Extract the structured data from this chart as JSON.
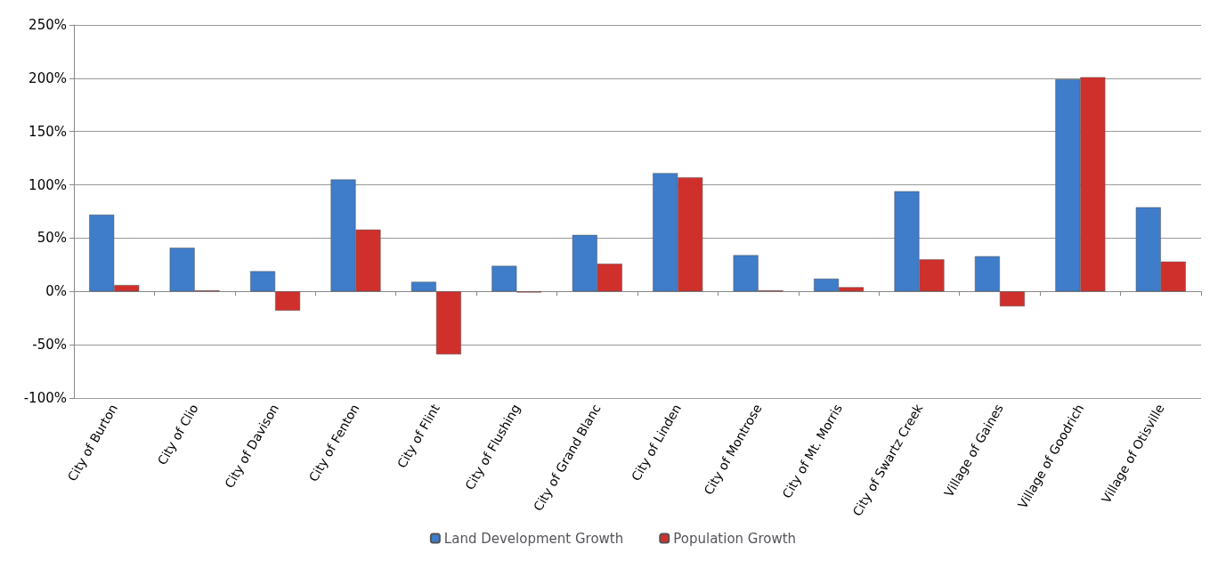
{
  "chart_data": {
    "type": "bar",
    "categories": [
      "City of Burton",
      "City of Clio",
      "City of Davison",
      "City of Fenton",
      "City of Flint",
      "City of Flushing",
      "City of Grand Blanc",
      "City of Linden",
      "City of Montrose",
      "City of Mt. Morris",
      "City of Swartz Creek",
      "Village of Gaines",
      "Village of Goodrich",
      "Village of Otisville"
    ],
    "series": [
      {
        "name": "Land Development Growth",
        "color": "#3f7cc9",
        "values": [
          72,
          41,
          19,
          105,
          9,
          24,
          53,
          111,
          34,
          12,
          94,
          33,
          199,
          79
        ]
      },
      {
        "name": "Population Growth",
        "color": "#d0302c",
        "values": [
          6,
          1,
          -18,
          58,
          -59,
          -1,
          26,
          107,
          1,
          4,
          30,
          -14,
          201,
          28
        ]
      }
    ],
    "ylim": [
      -100,
      250
    ],
    "yticks": [
      {
        "value": -100,
        "label": "-100%"
      },
      {
        "value": -50,
        "label": "-50%"
      },
      {
        "value": 0,
        "label": "0%"
      },
      {
        "value": 50,
        "label": "50%"
      },
      {
        "value": 100,
        "label": "100%"
      },
      {
        "value": 150,
        "label": "150%"
      },
      {
        "value": 200,
        "label": "200%"
      },
      {
        "value": 250,
        "label": "250%"
      }
    ],
    "grid": "y",
    "legend": "bottom"
  }
}
